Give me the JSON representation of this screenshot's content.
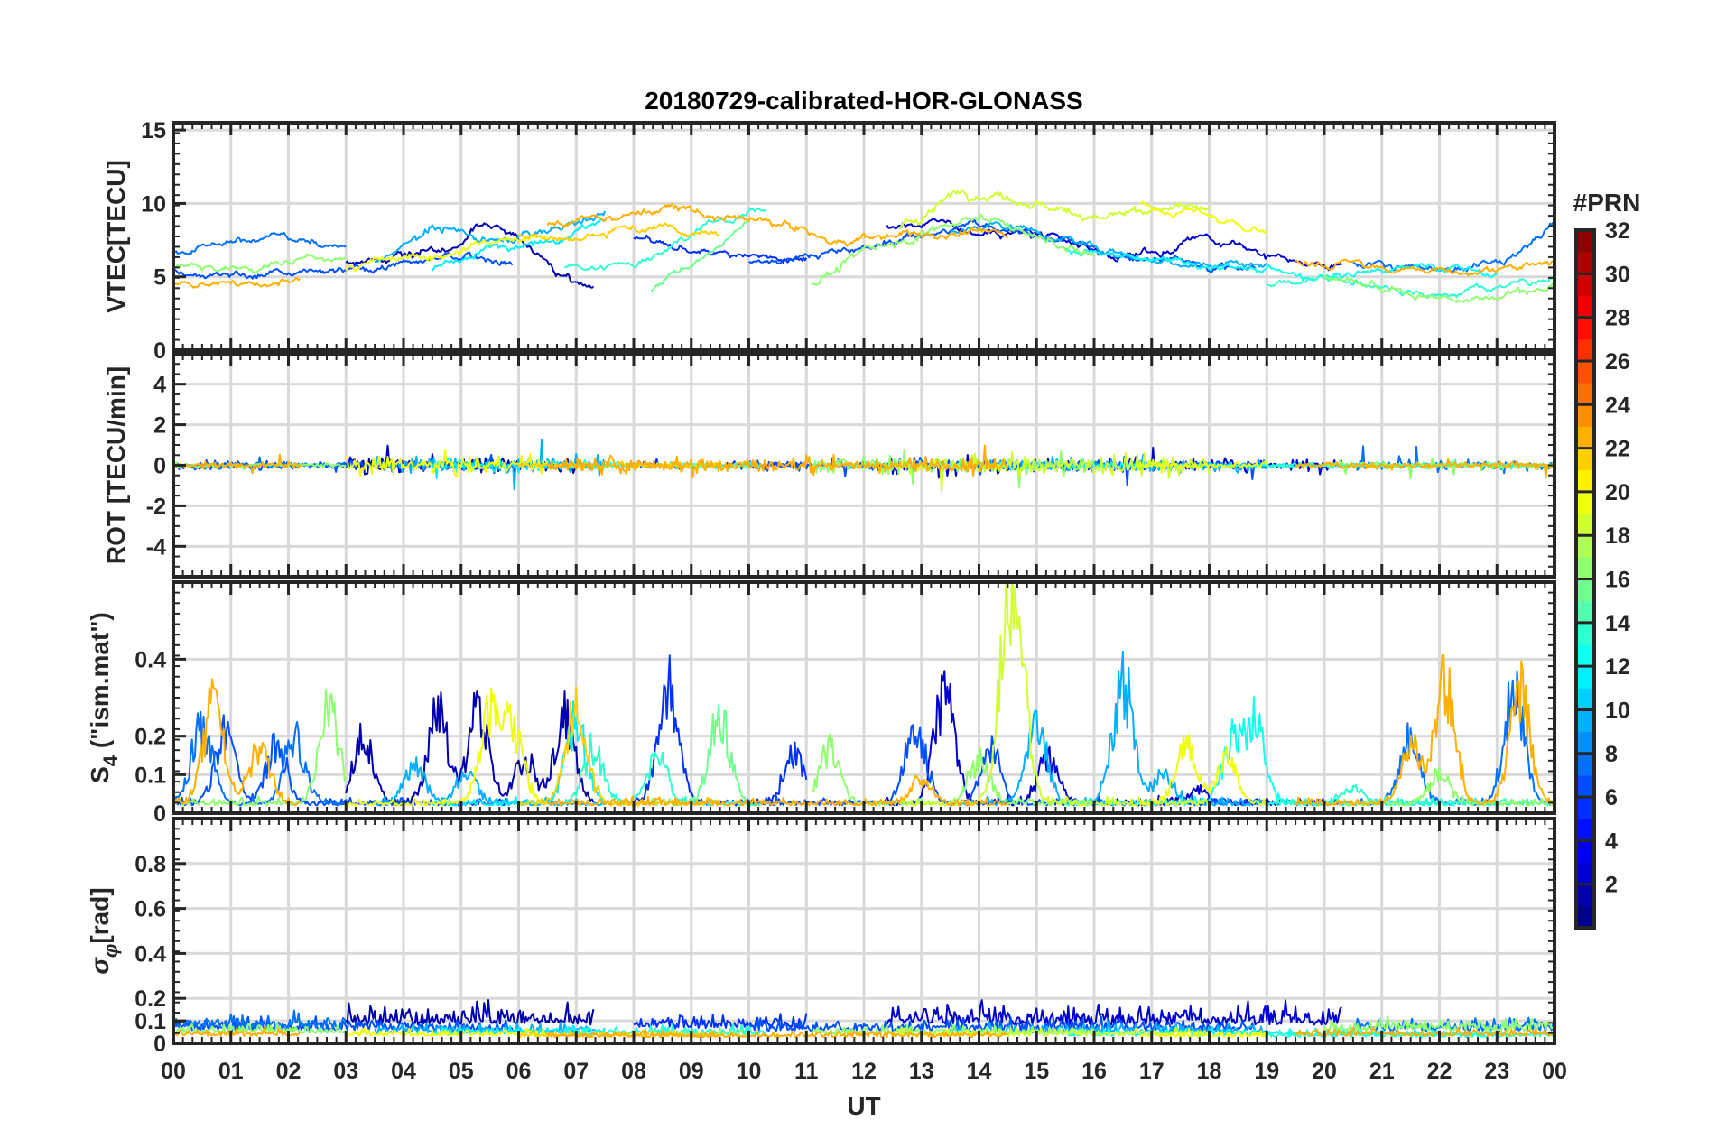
{
  "chart_data": {
    "type": "line",
    "title": "20180729-calibrated-HOR-GLONASS",
    "xlabel": "UT",
    "xlim": [
      0,
      24
    ],
    "x_ticks": [
      0,
      1,
      2,
      3,
      4,
      5,
      6,
      7,
      8,
      9,
      10,
      11,
      12,
      13,
      14,
      15,
      16,
      17,
      18,
      19,
      20,
      21,
      22,
      23,
      24
    ],
    "x_tick_labels": [
      "00",
      "01",
      "02",
      "03",
      "04",
      "05",
      "06",
      "07",
      "08",
      "09",
      "10",
      "11",
      "12",
      "13",
      "14",
      "15",
      "16",
      "17",
      "18",
      "19",
      "20",
      "21",
      "22",
      "23",
      "00"
    ],
    "grid": true,
    "colorbar": {
      "label": "#PRN",
      "range": [
        0,
        32
      ],
      "colormap": "jet",
      "ticks": [
        2,
        4,
        6,
        8,
        10,
        12,
        14,
        16,
        18,
        20,
        22,
        24,
        26,
        28,
        30,
        32
      ]
    },
    "panels": [
      {
        "key": "vtec",
        "ylabel": "VTEC[TECU]",
        "ylim": [
          0,
          15.5
        ],
        "yticks": [
          0,
          5,
          10,
          15
        ],
        "ytick_labels": [
          "0",
          "5",
          "10",
          "15"
        ]
      },
      {
        "key": "rot",
        "ylabel": "ROT [TECU/min]",
        "ylim": [
          -5.5,
          5.5
        ],
        "yticks": [
          -4,
          -2,
          0,
          2,
          4
        ],
        "ytick_labels": [
          "-4",
          "-2",
          "0",
          "2",
          "4"
        ]
      },
      {
        "key": "s4",
        "ylabel_main": "S",
        "ylabel_sub": "4",
        "ylabel_rest": " (\"ism.mat\")",
        "ylim": [
          0,
          0.6
        ],
        "yticks": [
          0,
          0.1,
          0.2,
          0.4
        ],
        "ytick_labels": [
          "0",
          "0.1",
          "0.2",
          "0.4"
        ]
      },
      {
        "key": "sigma",
        "ylabel_main": "σ",
        "ylabel_sub": "φ",
        "ylabel_rest": "[rad]",
        "ylim": [
          0,
          1
        ],
        "yticks": [
          0,
          0.1,
          0.2,
          0.4,
          0.6,
          0.8
        ],
        "ytick_labels": [
          "0",
          "0.1",
          "0.2",
          "0.4",
          "0.6",
          "0.8"
        ]
      }
    ],
    "series": [
      {
        "prn": 2,
        "t": [
          3.0,
          7.3
        ],
        "vtec": [
          6.0,
          6.2,
          6.8,
          7.2,
          8.6,
          7.6,
          5.2,
          4.5
        ],
        "rot_amp": 0.9,
        "s4_peaks": [
          [
            3.3,
            0.22
          ],
          [
            4.6,
            0.31
          ],
          [
            5.3,
            0.31
          ],
          [
            6.1,
            0.15
          ],
          [
            6.8,
            0.3
          ]
        ],
        "sigma": 0.15
      },
      {
        "prn": 3,
        "t": [
          12.4,
          20.3
        ],
        "vtec": [
          8.5,
          9.0,
          8.0,
          8.3,
          7.2,
          6.4,
          6.5,
          7.8,
          6.8,
          6.1,
          5.8
        ],
        "rot_amp": 0.8,
        "s4_peaks": [
          [
            13.4,
            0.38
          ],
          [
            15.2,
            0.15
          ],
          [
            17.8,
            0.05
          ]
        ],
        "sigma": 0.15
      },
      {
        "prn": 6,
        "t": [
          8.0,
          11.0
        ],
        "vtec": [
          7.5,
          6.8,
          6.2,
          6.5
        ],
        "rot_amp": 0.4,
        "s4_peaks": [
          [
            8.6,
            0.4
          ],
          [
            10.8,
            0.18
          ]
        ],
        "sigma": 0.12
      },
      {
        "prn": 7,
        "t": [
          0.0,
          5.9
        ],
        "vtec": [
          5.5,
          5.2,
          5.1,
          5.3,
          5.9,
          6.3,
          6.1
        ],
        "rot_amp": 0.5,
        "s4_peaks": [
          [
            0.9,
            0.23
          ],
          [
            1.8,
            0.2
          ]
        ],
        "sigma": 0.1
      },
      {
        "prn": 7,
        "t": [
          10.0,
          18.8
        ],
        "vtec": [
          6.0,
          6.4,
          6.9,
          7.8,
          8.5,
          8.0,
          7.0,
          6.2,
          5.9,
          5.6
        ],
        "rot_amp": 0.6,
        "s4_peaks": [
          [
            12.9,
            0.27
          ],
          [
            14.2,
            0.18
          ]
        ],
        "sigma": 0.1
      },
      {
        "prn": 8,
        "t": [
          0.0,
          3.0
        ],
        "vtec": [
          6.8,
          7.5,
          7.8,
          7.2
        ],
        "rot_amp": 0.3,
        "s4_peaks": [
          [
            0.5,
            0.26
          ],
          [
            2.1,
            0.22
          ]
        ],
        "sigma": 0.12
      },
      {
        "prn": 8,
        "t": [
          20.5,
          24.0
        ],
        "vtec": [
          5.8,
          5.6,
          5.5,
          6.2,
          8.5
        ],
        "rot_amp": 0.6,
        "s4_peaks": [
          [
            21.5,
            0.22
          ],
          [
            23.3,
            0.38
          ]
        ],
        "sigma": 0.1
      },
      {
        "prn": 10,
        "t": [
          3.5,
          7.5
        ],
        "vtec": [
          6.0,
          8.5,
          7.5,
          8.3,
          9.2
        ],
        "rot_amp": 1.0,
        "s4_peaks": [
          [
            4.2,
            0.12
          ],
          [
            5.1,
            0.1
          ]
        ],
        "sigma": 0.08
      },
      {
        "prn": 10,
        "t": [
          13.5,
          19.0
        ],
        "vtec": [
          8.2,
          8.6,
          7.4,
          6.4,
          6.0,
          5.8
        ],
        "rot_amp": 0.7,
        "s4_peaks": [
          [
            15.0,
            0.28
          ],
          [
            16.5,
            0.42
          ],
          [
            17.2,
            0.1
          ]
        ],
        "sigma": 0.08
      },
      {
        "prn": 12,
        "t": [
          4.5,
          7.5
        ],
        "vtec": [
          5.3,
          6.8,
          7.6,
          8.9
        ],
        "rot_amp": 0.7,
        "s4_peaks": [
          [
            7.0,
            0.28
          ],
          [
            18.7,
            0.25
          ]
        ],
        "sigma": 0.07
      },
      {
        "prn": 13,
        "t": [
          15.5,
          23.0
        ],
        "vtec": [
          7.0,
          6.2,
          5.8,
          5.5,
          5.2,
          5.5,
          5.9,
          5.2
        ],
        "rot_amp": 0.3,
        "s4_peaks": [
          [
            18.4,
            0.2
          ],
          [
            18.8,
            0.26
          ]
        ],
        "sigma": 0.06
      },
      {
        "prn": 14,
        "t": [
          6.8,
          10.3
        ],
        "vtec": [
          5.6,
          5.8,
          8.4,
          9.6
        ],
        "rot_amp": 0.4,
        "s4_peaks": [
          [
            7.3,
            0.18
          ],
          [
            8.4,
            0.16
          ]
        ],
        "sigma": 0.07
      },
      {
        "prn": 14,
        "t": [
          19.0,
          24.0
        ],
        "vtec": [
          4.5,
          4.8,
          4.4,
          3.9,
          4.3,
          5.0
        ],
        "rot_amp": 0.3,
        "s4_peaks": [
          [
            20.5,
            0.05
          ]
        ],
        "sigma": 0.05
      },
      {
        "prn": 16,
        "t": [
          8.3,
          10.0
        ],
        "vtec": [
          4.2,
          6.2,
          8.6
        ],
        "rot_amp": 0.3,
        "s4_peaks": [
          [
            9.5,
            0.3
          ]
        ],
        "sigma": 0.06
      },
      {
        "prn": 17,
        "t": [
          0.0,
          3.0
        ],
        "vtec": [
          5.8,
          5.5,
          6.0,
          6.4
        ],
        "rot_amp": 0.3,
        "s4_peaks": [
          [
            2.7,
            0.3
          ]
        ],
        "sigma": 0.08
      },
      {
        "prn": 17,
        "t": [
          11.1,
          16.0
        ],
        "vtec": [
          4.5,
          7.0,
          8.0,
          9.3,
          7.6,
          6.5
        ],
        "rot_amp": 1.1,
        "s4_peaks": [
          [
            11.4,
            0.18
          ],
          [
            14.0,
            0.15
          ]
        ],
        "sigma": 0.07
      },
      {
        "prn": 17,
        "t": [
          20.0,
          24.0
        ],
        "vtec": [
          5.0,
          4.2,
          3.6,
          3.6,
          4.5
        ],
        "rot_amp": 0.5,
        "s4_peaks": [
          [
            22.0,
            0.1
          ]
        ],
        "sigma": 0.1
      },
      {
        "prn": 19,
        "t": [
          12.6,
          18.0
        ],
        "vtec": [
          8.3,
          11.0,
          10.2,
          9.2,
          9.3,
          9.8
        ],
        "rot_amp": 1.2,
        "s4_peaks": [
          [
            14.5,
            0.52
          ],
          [
            14.7,
            0.35
          ]
        ],
        "sigma": 0.06
      },
      {
        "prn": 20,
        "t": [
          3.0,
          6.5
        ],
        "vtec": [
          5.6,
          6.4,
          7.2,
          7.6
        ],
        "rot_amp": 1.0,
        "s4_peaks": [
          [
            5.5,
            0.3
          ],
          [
            5.9,
            0.25
          ]
        ],
        "sigma": 0.06
      },
      {
        "prn": 20,
        "t": [
          16.8,
          19.0
        ],
        "vtec": [
          10.0,
          9.2,
          8.0
        ],
        "rot_amp": 0.4,
        "s4_peaks": [
          [
            17.6,
            0.2
          ],
          [
            18.3,
            0.15
          ]
        ],
        "sigma": 0.05
      },
      {
        "prn": 22,
        "t": [
          6.0,
          9.5
        ],
        "vtec": [
          7.7,
          8.0,
          8.4,
          7.9
        ],
        "rot_amp": 0.4,
        "s4_peaks": [
          [
            7.0,
            0.34
          ],
          [
            16.0,
            0.15
          ]
        ],
        "sigma": 0.05
      },
      {
        "prn": 23,
        "t": [
          0.0,
          2.2
        ],
        "vtec": [
          4.5,
          4.6,
          4.7
        ],
        "rot_amp": 0.4,
        "s4_peaks": [
          [
            0.7,
            0.34
          ],
          [
            1.5,
            0.18
          ]
        ],
        "sigma": 0.06
      },
      {
        "prn": 23,
        "t": [
          6.5,
          14.5
        ],
        "vtec": [
          8.5,
          9.0,
          9.6,
          9.1,
          8.6,
          7.2,
          7.8,
          8.0,
          7.8
        ],
        "rot_amp": 0.9,
        "s4_peaks": [
          [
            13.0,
            0.08
          ]
        ],
        "sigma": 0.05
      },
      {
        "prn": 23,
        "t": [
          19.5,
          24.0
        ],
        "vtec": [
          6.0,
          5.9,
          5.6,
          5.3,
          5.5,
          5.9
        ],
        "rot_amp": 0.4,
        "s4_peaks": [
          [
            21.5,
            0.2
          ],
          [
            22.1,
            0.4
          ],
          [
            23.4,
            0.38
          ]
        ],
        "sigma": 0.06
      }
    ]
  }
}
